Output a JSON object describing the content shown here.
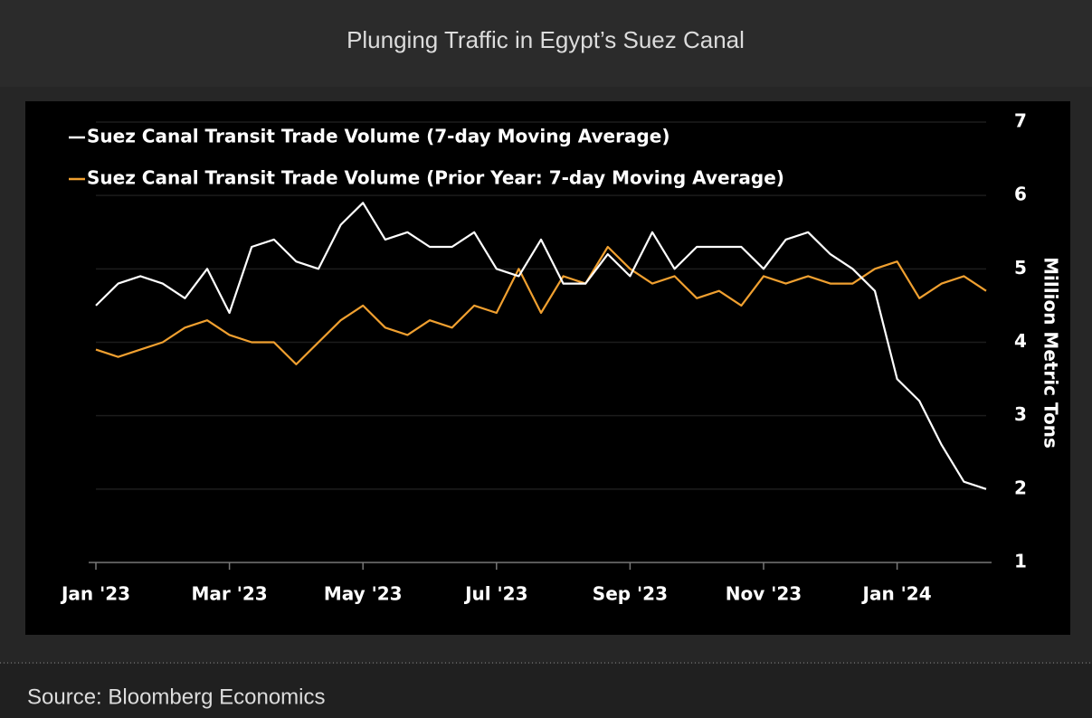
{
  "title": "Plunging Traffic in Egypt’s Suez Canal",
  "source": "Source: Bloomberg Economics",
  "chart_data": {
    "type": "line",
    "y_axis_label": "Million Metric Tons",
    "categories": [
      "Jan '23",
      null,
      null,
      null,
      null,
      null,
      "Mar '23",
      null,
      null,
      null,
      null,
      null,
      "May '23",
      null,
      null,
      null,
      null,
      null,
      "Jul '23",
      null,
      null,
      null,
      null,
      null,
      "Sep '23",
      null,
      null,
      null,
      null,
      null,
      "Nov '23",
      null,
      null,
      null,
      null,
      null,
      "Jan '24",
      null,
      null,
      null,
      null
    ],
    "series": [
      {
        "name": "Suez Canal Transit Trade Volume (7-day Moving Average)",
        "color": "#ffffff",
        "values": [
          4.5,
          4.8,
          4.9,
          4.8,
          4.6,
          5.0,
          4.4,
          5.3,
          5.4,
          5.1,
          5.0,
          5.6,
          5.9,
          5.4,
          5.5,
          5.3,
          5.3,
          5.5,
          5.0,
          4.9,
          5.4,
          4.8,
          4.8,
          5.2,
          4.9,
          5.5,
          5.0,
          5.3,
          5.3,
          5.3,
          5.0,
          5.4,
          5.5,
          5.2,
          5.0,
          4.7,
          3.5,
          3.2,
          2.6,
          2.1,
          2.0
        ]
      },
      {
        "name": "Suez Canal Transit Trade Volume (Prior Year: 7-day Moving Average)",
        "color": "#f0a030",
        "values": [
          3.9,
          3.8,
          3.9,
          4.0,
          4.2,
          4.3,
          4.1,
          4.0,
          4.0,
          3.7,
          4.0,
          4.3,
          4.5,
          4.2,
          4.1,
          4.3,
          4.2,
          4.5,
          4.4,
          5.0,
          4.4,
          4.9,
          4.8,
          5.3,
          5.0,
          4.8,
          4.9,
          4.6,
          4.7,
          4.5,
          4.9,
          4.8,
          4.9,
          4.8,
          4.8,
          5.0,
          5.1,
          4.6,
          4.8,
          4.9,
          4.7
        ]
      }
    ],
    "ylim": [
      1,
      7
    ],
    "yticks": [
      1,
      2,
      3,
      4,
      5,
      6,
      7
    ],
    "grid": true
  }
}
